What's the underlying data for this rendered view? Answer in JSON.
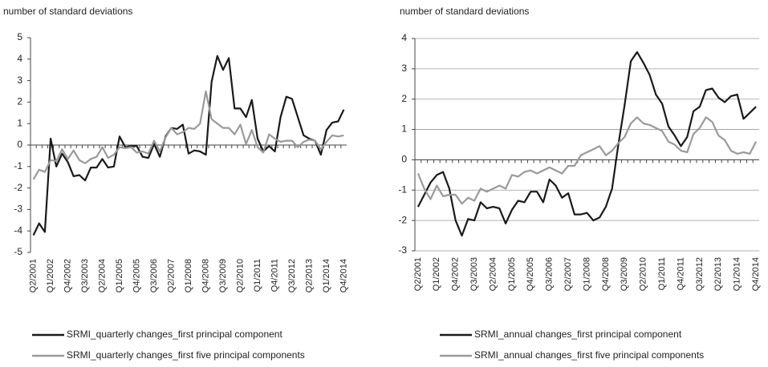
{
  "chart_data": [
    {
      "type": "line",
      "ylabel": "number of standard deviations",
      "categories": [
        "Q2/2001",
        null,
        null,
        "Q1/2002",
        null,
        null,
        "Q4/2002",
        null,
        null,
        "Q3/2003",
        null,
        null,
        "Q2/2004",
        null,
        null,
        "Q1/2005",
        null,
        null,
        "Q4/2005",
        null,
        null,
        "Q3/2006",
        null,
        null,
        "Q2/2007",
        null,
        null,
        "Q1/2008",
        null,
        null,
        "Q4/2008",
        null,
        null,
        "Q3/2009",
        null,
        null,
        "Q2/2010",
        null,
        null,
        "Q1/2011",
        null,
        null,
        "Q4/2011",
        null,
        null,
        "Q3/2012",
        null,
        null,
        "Q2/2013",
        null,
        null,
        "Q1/2014",
        null,
        null,
        "Q4/2014"
      ],
      "series": [
        {
          "name": "SRMI_quarterly changes_first principal component",
          "color": "#1a1a1a",
          "values": [
            -4.2,
            -3.65,
            -4.05,
            0.3,
            -1.0,
            -0.4,
            -0.8,
            -1.45,
            -1.4,
            -1.65,
            -1.05,
            -1.05,
            -0.65,
            -1.05,
            -1.0,
            0.4,
            -0.1,
            -0.05,
            -0.05,
            -0.55,
            -0.6,
            0.05,
            -0.55,
            0.4,
            0.8,
            0.75,
            0.95,
            -0.4,
            -0.25,
            -0.3,
            -0.45,
            2.95,
            4.15,
            3.5,
            4.05,
            1.7,
            1.7,
            1.3,
            2.1,
            0.3,
            -0.3,
            -0.05,
            -0.3,
            1.3,
            2.25,
            2.15,
            1.3,
            0.45,
            0.3,
            0.2,
            -0.45,
            0.7,
            1.05,
            1.1,
            1.65
          ]
        },
        {
          "name": "SRMI_quarterly changes_first five principal components",
          "color": "#9a9a9a",
          "values": [
            -1.6,
            -1.15,
            -1.25,
            -0.7,
            -0.75,
            -0.2,
            -0.65,
            -0.25,
            -0.7,
            -0.85,
            -0.65,
            -0.55,
            -0.1,
            -0.6,
            -0.45,
            -0.1,
            -0.15,
            -0.1,
            -0.35,
            -0.3,
            -0.4,
            0.2,
            -0.3,
            0.35,
            0.8,
            0.5,
            0.6,
            0.8,
            0.75,
            1.0,
            2.5,
            1.2,
            1.0,
            0.8,
            0.8,
            0.5,
            0.95,
            0.05,
            0.7,
            -0.1,
            -0.35,
            0.5,
            0.3,
            0.15,
            0.2,
            0.2,
            -0.1,
            0.15,
            0.25,
            0.2,
            -0.2,
            0.15,
            0.45,
            0.4,
            0.45
          ]
        }
      ],
      "ylim": [
        -5,
        5
      ],
      "yticks": [
        -5,
        -4,
        -3,
        -2,
        -1,
        0,
        1,
        2,
        3,
        4,
        5
      ],
      "grid": false
    },
    {
      "type": "line",
      "ylabel": "number of standard deviations",
      "categories": [
        "Q2/2001",
        null,
        null,
        "Q1/2002",
        null,
        null,
        "Q4/2002",
        null,
        null,
        "Q3/2003",
        null,
        null,
        "Q2/2004",
        null,
        null,
        "Q1/2005",
        null,
        null,
        "Q4/2005",
        null,
        null,
        "Q3/2006",
        null,
        null,
        "Q2/2007",
        null,
        null,
        "Q1/2008",
        null,
        null,
        "Q4/2008",
        null,
        null,
        "Q3/2009",
        null,
        null,
        "Q2/2010",
        null,
        null,
        "Q1/2011",
        null,
        null,
        "Q4/2011",
        null,
        null,
        "Q3/2012",
        null,
        null,
        "Q2/2013",
        null,
        null,
        "Q1/2014",
        null,
        null,
        "Q4/2014"
      ],
      "series": [
        {
          "name": "SRMI_annual changes_first principal component",
          "color": "#1a1a1a",
          "values": [
            -1.55,
            -1.15,
            -0.75,
            -0.5,
            -0.4,
            -0.95,
            -2.0,
            -2.5,
            -1.95,
            -2.0,
            -1.4,
            -1.6,
            -1.55,
            -1.6,
            -2.1,
            -1.65,
            -1.35,
            -1.4,
            -1.05,
            -1.05,
            -1.4,
            -0.65,
            -0.85,
            -1.25,
            -1.1,
            -1.8,
            -1.8,
            -1.75,
            -2.0,
            -1.9,
            -1.55,
            -0.95,
            0.5,
            1.8,
            3.25,
            3.55,
            3.2,
            2.8,
            2.15,
            1.85,
            1.1,
            0.8,
            0.45,
            0.75,
            1.6,
            1.75,
            2.3,
            2.35,
            2.05,
            1.9,
            2.1,
            2.15,
            1.35,
            1.55,
            1.75
          ]
        },
        {
          "name": "SRMI_annual changes_first five principal components",
          "color": "#9a9a9a",
          "values": [
            -0.45,
            -0.95,
            -1.3,
            -0.85,
            -1.2,
            -1.15,
            -1.15,
            -1.45,
            -1.25,
            -1.35,
            -0.95,
            -1.05,
            -0.95,
            -0.85,
            -0.95,
            -0.5,
            -0.55,
            -0.4,
            -0.35,
            -0.45,
            -0.35,
            -0.25,
            -0.35,
            -0.45,
            -0.2,
            -0.2,
            0.15,
            0.25,
            0.35,
            0.45,
            0.15,
            0.3,
            0.55,
            0.75,
            1.2,
            1.4,
            1.2,
            1.15,
            1.05,
            0.95,
            0.6,
            0.5,
            0.3,
            0.25,
            0.85,
            1.05,
            1.4,
            1.25,
            0.8,
            0.65,
            0.3,
            0.2,
            0.25,
            0.2,
            0.6
          ]
        }
      ],
      "ylim": [
        -3,
        4
      ],
      "yticks": [
        -3,
        -2,
        -1,
        0,
        1,
        2,
        3,
        4
      ],
      "grid": true
    }
  ]
}
